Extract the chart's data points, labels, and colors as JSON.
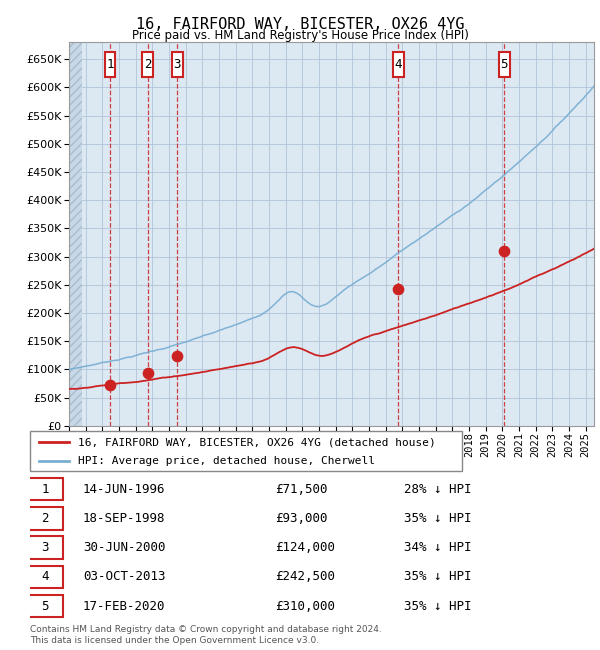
{
  "title": "16, FAIRFORD WAY, BICESTER, OX26 4YG",
  "subtitle": "Price paid vs. HM Land Registry's House Price Index (HPI)",
  "yticks": [
    0,
    50000,
    100000,
    150000,
    200000,
    250000,
    300000,
    350000,
    400000,
    450000,
    500000,
    550000,
    600000,
    650000
  ],
  "hpi_color": "#7aafd4",
  "price_color": "#cc2222",
  "bg_color": "#dce8f2",
  "grid_color": "#b0c4d8",
  "sale_dates_x": [
    1996.45,
    1998.72,
    2000.5,
    2013.75,
    2020.12
  ],
  "sale_prices_y": [
    71500,
    93000,
    124000,
    242500,
    310000
  ],
  "sale_labels": [
    "1",
    "2",
    "3",
    "4",
    "5"
  ],
  "legend_line_label": "16, FAIRFORD WAY, BICESTER, OX26 4YG (detached house)",
  "legend_hpi_label": "HPI: Average price, detached house, Cherwell",
  "table_rows": [
    [
      "1",
      "14-JUN-1996",
      "£71,500",
      "28% ↓ HPI"
    ],
    [
      "2",
      "18-SEP-1998",
      "£93,000",
      "35% ↓ HPI"
    ],
    [
      "3",
      "30-JUN-2000",
      "£124,000",
      "34% ↓ HPI"
    ],
    [
      "4",
      "03-OCT-2013",
      "£242,500",
      "35% ↓ HPI"
    ],
    [
      "5",
      "17-FEB-2020",
      "£310,000",
      "35% ↓ HPI"
    ]
  ],
  "footnote": "Contains HM Land Registry data © Crown copyright and database right 2024.\nThis data is licensed under the Open Government Licence v3.0.",
  "xmin": 1994,
  "xmax": 2025.5
}
